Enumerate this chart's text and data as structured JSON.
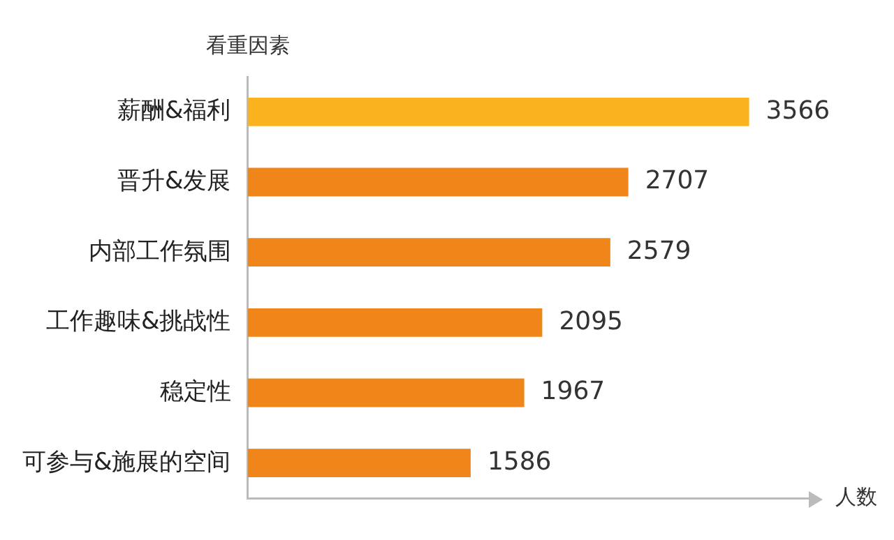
{
  "chart_data": {
    "type": "bar",
    "orientation": "horizontal",
    "ylabel": "看重因素",
    "xlabel": "人数",
    "categories": [
      "薪酬&福利",
      "晋升&发展",
      "内部工作氛围",
      "工作趣味&挑战性",
      "稳定性",
      "可参与&施展的空间"
    ],
    "values": [
      3566,
      2707,
      2579,
      2095,
      1967,
      1586
    ],
    "colors": [
      "#fbb21f",
      "#f08519",
      "#f08519",
      "#f08519",
      "#f08519",
      "#f08519"
    ],
    "data_labels": true,
    "grid": false
  }
}
